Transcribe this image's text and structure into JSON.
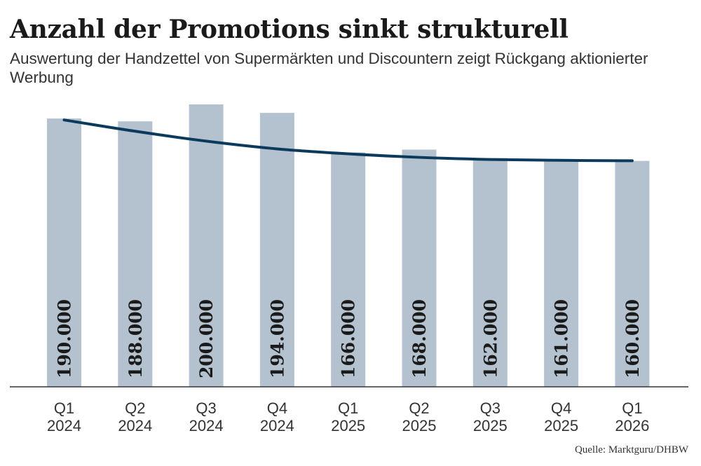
{
  "title": "Anzahl der Promotions sinkt strukturell",
  "subtitle": "Auswertung der Handzettel von Supermärkten und Discountern zeigt Rückgang aktionierter Werbung",
  "source": "Quelle: Marktguru/DHBW",
  "colors": {
    "bar": "#b4c1cf",
    "trend_line": "#0c3a5c",
    "axis": "#333333",
    "text": "#1a1a1a"
  },
  "chart_data": {
    "type": "bar",
    "categories": [
      [
        "Q1",
        "2024"
      ],
      [
        "Q2",
        "2024"
      ],
      [
        "Q3",
        "2024"
      ],
      [
        "Q4",
        "2024"
      ],
      [
        "Q1",
        "2025"
      ],
      [
        "Q2",
        "2025"
      ],
      [
        "Q3",
        "2025"
      ],
      [
        "Q4",
        "2025"
      ],
      [
        "Q1",
        "2026"
      ]
    ],
    "values": [
      190000,
      188000,
      200000,
      194000,
      166000,
      168000,
      162000,
      161000,
      160000
    ],
    "data_labels": [
      "190.000",
      "188.000",
      "200.000",
      "194.000",
      "166.000",
      "168.000",
      "162.000",
      "161.000",
      "160.000"
    ],
    "trend": [
      189000,
      181000,
      174000,
      168500,
      165000,
      162500,
      161000,
      160400,
      160100
    ],
    "ylim": [
      0,
      200000
    ],
    "grid": false,
    "legend": "none"
  }
}
